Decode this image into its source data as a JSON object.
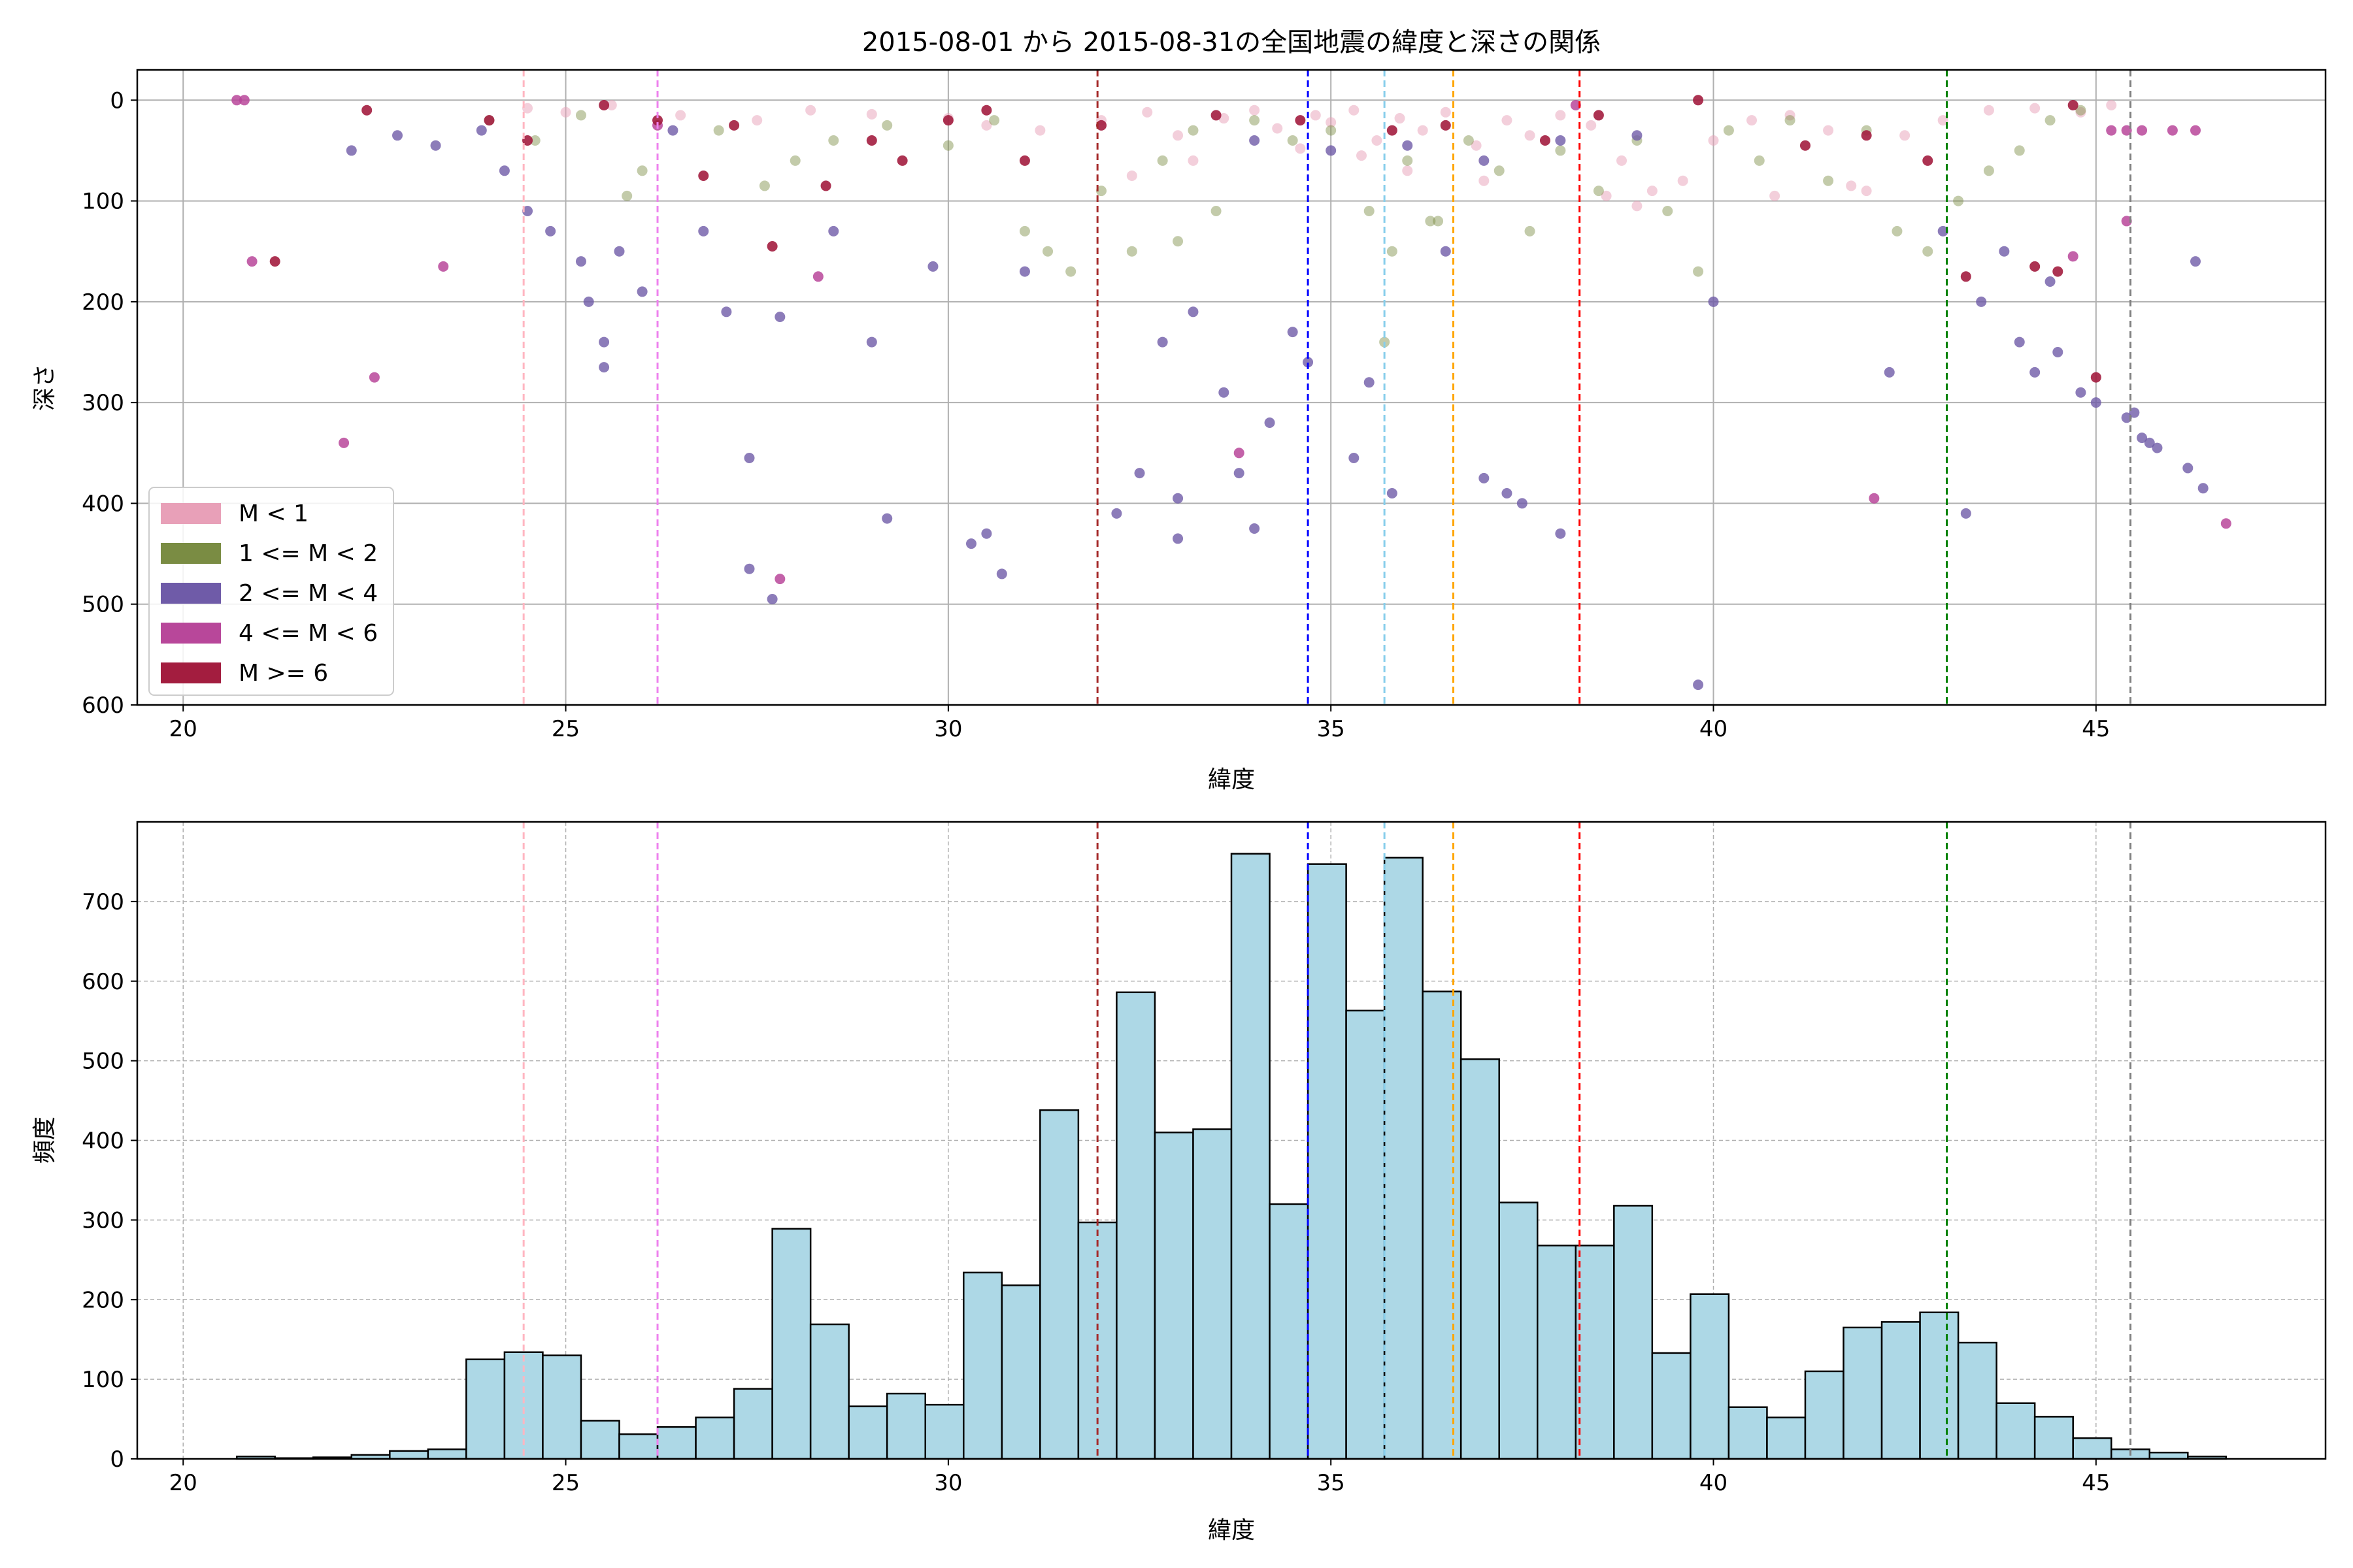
{
  "chart_data": [
    {
      "type": "scatter",
      "title": "2015-08-01 から 2015-08-31の全国地震の緯度と深さの関係",
      "xlabel": "緯度",
      "ylabel": "深さ",
      "xlim": [
        19.4,
        48.0
      ],
      "ylim": [
        600,
        -30
      ],
      "y_inverted": true,
      "xticks": [
        20,
        25,
        30,
        35,
        40,
        45
      ],
      "yticks": [
        0,
        100,
        200,
        300,
        400,
        500,
        600
      ],
      "grid": true,
      "legend_position": "lower-left",
      "legend": [
        {
          "label": "M < 1",
          "color": "#e8a0b8"
        },
        {
          "label": "1 <= M < 2",
          "color": "#7a8c43"
        },
        {
          "label": "2 <= M < 4",
          "color": "#6f5ba8"
        },
        {
          "label": "4 <= M < 6",
          "color": "#b8479a"
        },
        {
          "label": "M >= 6",
          "color": "#a31d3f"
        }
      ],
      "vlines": [
        {
          "x": 24.45,
          "color": "#ffb6c1"
        },
        {
          "x": 26.2,
          "color": "#ee82ee"
        },
        {
          "x": 31.95,
          "color": "#a52a2a"
        },
        {
          "x": 34.7,
          "color": "#0000ff"
        },
        {
          "x": 35.7,
          "color": "#87ceeb"
        },
        {
          "x": 36.6,
          "color": "#ffa500"
        },
        {
          "x": 38.25,
          "color": "#ff0000"
        },
        {
          "x": 43.05,
          "color": "#008000"
        },
        {
          "x": 45.45,
          "color": "#808080"
        }
      ],
      "series": [
        {
          "name": "M < 1",
          "color": "#e8a0b8",
          "points": [
            [
              24.5,
              8
            ],
            [
              25.0,
              12
            ],
            [
              25.6,
              5
            ],
            [
              26.5,
              15
            ],
            [
              27.5,
              20
            ],
            [
              28.2,
              10
            ],
            [
              29.0,
              14
            ],
            [
              30.0,
              18
            ],
            [
              30.5,
              25
            ],
            [
              31.2,
              30
            ],
            [
              32.0,
              20
            ],
            [
              32.6,
              12
            ],
            [
              33.0,
              35
            ],
            [
              33.6,
              18
            ],
            [
              34.0,
              10
            ],
            [
              34.3,
              28
            ],
            [
              34.8,
              15
            ],
            [
              35.0,
              22
            ],
            [
              35.3,
              10
            ],
            [
              35.6,
              40
            ],
            [
              35.9,
              18
            ],
            [
              36.2,
              30
            ],
            [
              36.5,
              12
            ],
            [
              36.9,
              45
            ],
            [
              37.3,
              20
            ],
            [
              37.6,
              35
            ],
            [
              38.0,
              15
            ],
            [
              38.4,
              25
            ],
            [
              38.8,
              60
            ],
            [
              39.2,
              90
            ],
            [
              39.6,
              80
            ],
            [
              40.0,
              40
            ],
            [
              40.5,
              20
            ],
            [
              41.0,
              15
            ],
            [
              41.5,
              30
            ],
            [
              42.0,
              90
            ],
            [
              42.5,
              35
            ],
            [
              43.0,
              20
            ],
            [
              43.6,
              10
            ],
            [
              44.2,
              8
            ],
            [
              44.8,
              12
            ],
            [
              45.2,
              5
            ],
            [
              36.0,
              70
            ],
            [
              35.4,
              55
            ],
            [
              34.6,
              48
            ],
            [
              33.2,
              60
            ],
            [
              32.4,
              75
            ],
            [
              37.0,
              80
            ],
            [
              39.0,
              105
            ],
            [
              40.8,
              95
            ],
            [
              41.8,
              85
            ],
            [
              38.6,
              95
            ]
          ]
        },
        {
          "name": "1 <= M < 2",
          "color": "#7a8c43",
          "points": [
            [
              24.0,
              20
            ],
            [
              24.6,
              40
            ],
            [
              25.2,
              15
            ],
            [
              25.8,
              95
            ],
            [
              26.0,
              70
            ],
            [
              27.0,
              30
            ],
            [
              27.6,
              85
            ],
            [
              28.0,
              60
            ],
            [
              28.5,
              40
            ],
            [
              29.2,
              25
            ],
            [
              30.0,
              45
            ],
            [
              30.6,
              20
            ],
            [
              31.0,
              130
            ],
            [
              31.3,
              150
            ],
            [
              31.6,
              170
            ],
            [
              32.0,
              90
            ],
            [
              32.4,
              150
            ],
            [
              32.8,
              60
            ],
            [
              33.2,
              30
            ],
            [
              33.5,
              110
            ],
            [
              34.0,
              20
            ],
            [
              34.5,
              40
            ],
            [
              35.0,
              30
            ],
            [
              35.5,
              110
            ],
            [
              35.8,
              150
            ],
            [
              36.0,
              60
            ],
            [
              36.4,
              120
            ],
            [
              36.8,
              40
            ],
            [
              37.2,
              70
            ],
            [
              37.6,
              130
            ],
            [
              38.0,
              50
            ],
            [
              38.5,
              90
            ],
            [
              39.0,
              40
            ],
            [
              39.4,
              110
            ],
            [
              39.8,
              170
            ],
            [
              40.2,
              30
            ],
            [
              40.6,
              60
            ],
            [
              41.0,
              20
            ],
            [
              41.5,
              80
            ],
            [
              42.0,
              30
            ],
            [
              42.4,
              130
            ],
            [
              42.8,
              150
            ],
            [
              43.2,
              100
            ],
            [
              43.6,
              70
            ],
            [
              44.0,
              50
            ],
            [
              44.4,
              20
            ],
            [
              44.8,
              10
            ],
            [
              35.7,
              240
            ],
            [
              36.3,
              120
            ],
            [
              33.0,
              140
            ]
          ]
        },
        {
          "name": "2 <= M < 4",
          "color": "#6f5ba8",
          "points": [
            [
              22.2,
              50
            ],
            [
              22.8,
              35
            ],
            [
              23.3,
              45
            ],
            [
              23.9,
              30
            ],
            [
              24.2,
              70
            ],
            [
              24.5,
              110
            ],
            [
              24.8,
              130
            ],
            [
              25.2,
              160
            ],
            [
              25.3,
              200
            ],
            [
              25.5,
              240
            ],
            [
              25.5,
              265
            ],
            [
              25.7,
              150
            ],
            [
              26.0,
              190
            ],
            [
              26.4,
              30
            ],
            [
              26.8,
              130
            ],
            [
              27.1,
              210
            ],
            [
              27.4,
              465
            ],
            [
              27.4,
              355
            ],
            [
              27.7,
              495
            ],
            [
              27.8,
              215
            ],
            [
              28.5,
              130
            ],
            [
              29.0,
              240
            ],
            [
              29.2,
              415
            ],
            [
              29.8,
              165
            ],
            [
              30.3,
              440
            ],
            [
              30.5,
              430
            ],
            [
              30.7,
              470
            ],
            [
              31.0,
              170
            ],
            [
              32.2,
              410
            ],
            [
              32.5,
              370
            ],
            [
              32.8,
              240
            ],
            [
              33.0,
              395
            ],
            [
              33.0,
              435
            ],
            [
              33.2,
              210
            ],
            [
              33.6,
              290
            ],
            [
              33.8,
              370
            ],
            [
              34.0,
              425
            ],
            [
              34.2,
              320
            ],
            [
              34.5,
              230
            ],
            [
              34.7,
              260
            ],
            [
              35.3,
              355
            ],
            [
              35.5,
              280
            ],
            [
              35.8,
              390
            ],
            [
              36.5,
              150
            ],
            [
              37.0,
              375
            ],
            [
              37.3,
              390
            ],
            [
              37.5,
              400
            ],
            [
              38.0,
              430
            ],
            [
              39.8,
              580
            ],
            [
              40.0,
              200
            ],
            [
              42.3,
              270
            ],
            [
              43.0,
              130
            ],
            [
              43.3,
              410
            ],
            [
              43.5,
              200
            ],
            [
              44.0,
              240
            ],
            [
              44.2,
              270
            ],
            [
              44.5,
              250
            ],
            [
              44.8,
              290
            ],
            [
              45.0,
              300
            ],
            [
              45.4,
              315
            ],
            [
              45.5,
              310
            ],
            [
              45.6,
              335
            ],
            [
              45.7,
              340
            ],
            [
              45.8,
              345
            ],
            [
              46.2,
              365
            ],
            [
              46.4,
              385
            ],
            [
              46.3,
              160
            ],
            [
              44.4,
              180
            ],
            [
              43.8,
              150
            ],
            [
              34.0,
              40
            ],
            [
              35.0,
              50
            ],
            [
              36.0,
              45
            ],
            [
              37.0,
              60
            ],
            [
              38.0,
              40
            ],
            [
              39.0,
              35
            ]
          ]
        },
        {
          "name": "4 <= M < 6",
          "color": "#b8479a",
          "points": [
            [
              20.7,
              0
            ],
            [
              20.8,
              0
            ],
            [
              20.9,
              160
            ],
            [
              22.1,
              340
            ],
            [
              22.5,
              275
            ],
            [
              23.4,
              165
            ],
            [
              26.2,
              25
            ],
            [
              27.8,
              475
            ],
            [
              28.3,
              175
            ],
            [
              33.8,
              350
            ],
            [
              38.2,
              5
            ],
            [
              42.1,
              395
            ],
            [
              44.7,
              155
            ],
            [
              45.2,
              30
            ],
            [
              45.4,
              30
            ],
            [
              45.6,
              30
            ],
            [
              46.0,
              30
            ],
            [
              46.3,
              30
            ],
            [
              46.7,
              420
            ],
            [
              45.4,
              120
            ]
          ]
        },
        {
          "name": "M >= 6",
          "color": "#a31d3f",
          "points": [
            [
              21.2,
              160
            ],
            [
              22.4,
              10
            ],
            [
              24.0,
              20
            ],
            [
              24.5,
              40
            ],
            [
              25.5,
              5
            ],
            [
              26.2,
              20
            ],
            [
              26.8,
              75
            ],
            [
              27.2,
              25
            ],
            [
              27.7,
              145
            ],
            [
              28.4,
              85
            ],
            [
              29.0,
              40
            ],
            [
              29.4,
              60
            ],
            [
              30.0,
              20
            ],
            [
              30.5,
              10
            ],
            [
              31.0,
              60
            ],
            [
              32.0,
              25
            ],
            [
              33.5,
              15
            ],
            [
              34.6,
              20
            ],
            [
              35.8,
              30
            ],
            [
              36.5,
              25
            ],
            [
              37.8,
              40
            ],
            [
              38.5,
              15
            ],
            [
              39.8,
              0
            ],
            [
              41.2,
              45
            ],
            [
              42.0,
              35
            ],
            [
              42.8,
              60
            ],
            [
              43.3,
              175
            ],
            [
              44.2,
              165
            ],
            [
              44.5,
              170
            ],
            [
              45.0,
              275
            ],
            [
              44.7,
              5
            ]
          ]
        }
      ]
    },
    {
      "type": "bar",
      "subtype": "histogram",
      "xlabel": "緯度",
      "ylabel": "頻度",
      "xlim": [
        19.4,
        48.0
      ],
      "ylim": [
        0,
        800
      ],
      "xticks": [
        20,
        25,
        30,
        35,
        40,
        45
      ],
      "yticks": [
        0,
        100,
        200,
        300,
        400,
        500,
        600,
        700
      ],
      "grid": true,
      "bar_color": "#add8e6",
      "bin_start": 20.7,
      "bin_width": 0.5,
      "values": [
        3,
        1,
        2,
        5,
        10,
        12,
        125,
        134,
        130,
        48,
        31,
        40,
        52,
        88,
        289,
        169,
        66,
        82,
        68,
        234,
        218,
        438,
        297,
        586,
        410,
        414,
        760,
        320,
        747,
        563,
        755,
        587,
        502,
        322,
        268,
        268,
        318,
        133,
        207,
        65,
        52,
        110,
        165,
        172,
        184,
        146,
        70,
        53,
        26,
        12,
        8,
        3
      ],
      "vlines": [
        {
          "x": 24.45,
          "color": "#ffb6c1"
        },
        {
          "x": 26.2,
          "color": "#ee82ee"
        },
        {
          "x": 31.95,
          "color": "#a52a2a"
        },
        {
          "x": 34.7,
          "color": "#0000ff"
        },
        {
          "x": 35.7,
          "color": "#87ceeb"
        },
        {
          "x": 36.6,
          "color": "#ffa500"
        },
        {
          "x": 38.25,
          "color": "#ff0000"
        },
        {
          "x": 43.05,
          "color": "#008000"
        },
        {
          "x": 45.45,
          "color": "#808080"
        }
      ]
    }
  ]
}
